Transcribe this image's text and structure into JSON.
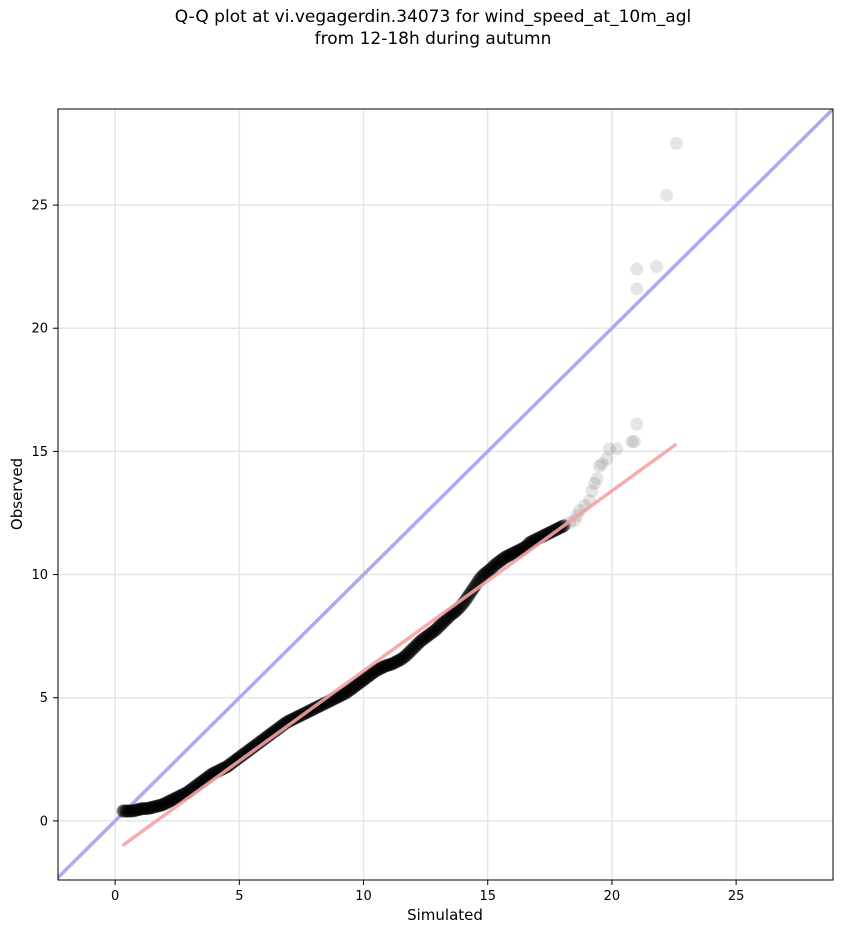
{
  "chart_data": {
    "type": "scatter",
    "title_lines": [
      "Q-Q plot at vi.vegagerdin.34073 for wind_speed_at_10m_agl",
      "from 12-18h during autumn"
    ],
    "xlabel": "Simulated",
    "ylabel": "Observed",
    "xlim": [
      -2.3,
      28.9
    ],
    "ylim": [
      -2.4,
      28.9
    ],
    "xticks": [
      0,
      5,
      10,
      15,
      20,
      25
    ],
    "yticks": [
      0,
      5,
      10,
      15,
      20,
      25
    ],
    "grid": true,
    "reference_line": {
      "description": "y = x",
      "color": "#aaaaf5"
    },
    "fit_line": {
      "x": [
        0.3,
        22.6
      ],
      "y": [
        -1.0,
        15.3
      ],
      "color": "#f5a3a3"
    },
    "point_color": "#000000",
    "points": [
      [
        0.3,
        0.4
      ],
      [
        0.5,
        0.4
      ],
      [
        0.7,
        0.4
      ],
      [
        0.9,
        0.45
      ],
      [
        1.1,
        0.5
      ],
      [
        1.3,
        0.5
      ],
      [
        1.5,
        0.55
      ],
      [
        1.7,
        0.6
      ],
      [
        1.9,
        0.65
      ],
      [
        2.1,
        0.75
      ],
      [
        2.3,
        0.85
      ],
      [
        2.5,
        0.95
      ],
      [
        2.7,
        1.05
      ],
      [
        2.9,
        1.15
      ],
      [
        3.1,
        1.3
      ],
      [
        3.3,
        1.45
      ],
      [
        3.5,
        1.6
      ],
      [
        3.7,
        1.75
      ],
      [
        3.9,
        1.9
      ],
      [
        4.1,
        2.0
      ],
      [
        4.3,
        2.1
      ],
      [
        4.5,
        2.2
      ],
      [
        4.7,
        2.35
      ],
      [
        4.9,
        2.5
      ],
      [
        5.1,
        2.65
      ],
      [
        5.3,
        2.8
      ],
      [
        5.5,
        2.95
      ],
      [
        5.7,
        3.1
      ],
      [
        5.9,
        3.25
      ],
      [
        6.1,
        3.4
      ],
      [
        6.3,
        3.55
      ],
      [
        6.5,
        3.7
      ],
      [
        6.7,
        3.85
      ],
      [
        6.9,
        4.0
      ],
      [
        7.1,
        4.1
      ],
      [
        7.3,
        4.2
      ],
      [
        7.5,
        4.3
      ],
      [
        7.7,
        4.4
      ],
      [
        7.9,
        4.5
      ],
      [
        8.1,
        4.6
      ],
      [
        8.3,
        4.7
      ],
      [
        8.5,
        4.8
      ],
      [
        8.7,
        4.9
      ],
      [
        8.9,
        5.0
      ],
      [
        9.1,
        5.1
      ],
      [
        9.3,
        5.2
      ],
      [
        9.5,
        5.35
      ],
      [
        9.7,
        5.5
      ],
      [
        9.9,
        5.65
      ],
      [
        10.1,
        5.8
      ],
      [
        10.3,
        5.95
      ],
      [
        10.5,
        6.1
      ],
      [
        10.7,
        6.2
      ],
      [
        10.9,
        6.3
      ],
      [
        11.1,
        6.35
      ],
      [
        11.3,
        6.45
      ],
      [
        11.5,
        6.55
      ],
      [
        11.7,
        6.7
      ],
      [
        11.9,
        6.9
      ],
      [
        12.1,
        7.1
      ],
      [
        12.3,
        7.3
      ],
      [
        12.5,
        7.45
      ],
      [
        12.7,
        7.6
      ],
      [
        12.9,
        7.75
      ],
      [
        13.1,
        7.95
      ],
      [
        13.3,
        8.15
      ],
      [
        13.5,
        8.35
      ],
      [
        13.7,
        8.5
      ],
      [
        13.9,
        8.7
      ],
      [
        14.1,
        8.95
      ],
      [
        14.3,
        9.25
      ],
      [
        14.5,
        9.55
      ],
      [
        14.7,
        9.85
      ],
      [
        14.9,
        10.05
      ],
      [
        15.1,
        10.2
      ],
      [
        15.3,
        10.4
      ],
      [
        15.5,
        10.55
      ],
      [
        15.7,
        10.7
      ],
      [
        15.9,
        10.8
      ],
      [
        16.1,
        10.9
      ],
      [
        16.3,
        11.0
      ],
      [
        16.5,
        11.1
      ],
      [
        16.7,
        11.3
      ],
      [
        16.9,
        11.4
      ],
      [
        17.1,
        11.5
      ],
      [
        17.3,
        11.6
      ],
      [
        17.5,
        11.7
      ],
      [
        17.7,
        11.8
      ],
      [
        17.9,
        11.9
      ],
      [
        18.1,
        12.0
      ],
      [
        18.3,
        12.1
      ],
      [
        18.5,
        12.2
      ],
      [
        18.6,
        12.4
      ],
      [
        18.7,
        12.6
      ],
      [
        18.9,
        12.8
      ],
      [
        19.1,
        13.0
      ],
      [
        19.2,
        13.4
      ],
      [
        19.3,
        13.7
      ],
      [
        19.4,
        13.9
      ],
      [
        19.5,
        14.4
      ],
      [
        19.6,
        14.5
      ],
      [
        19.8,
        14.7
      ],
      [
        19.9,
        15.1
      ],
      [
        20.2,
        15.1
      ],
      [
        20.8,
        15.4
      ],
      [
        20.9,
        15.4
      ],
      [
        21.0,
        16.1
      ],
      [
        21.0,
        21.6
      ],
      [
        21.0,
        22.4
      ],
      [
        21.8,
        22.5
      ],
      [
        22.2,
        25.4
      ],
      [
        22.6,
        27.5
      ]
    ]
  }
}
